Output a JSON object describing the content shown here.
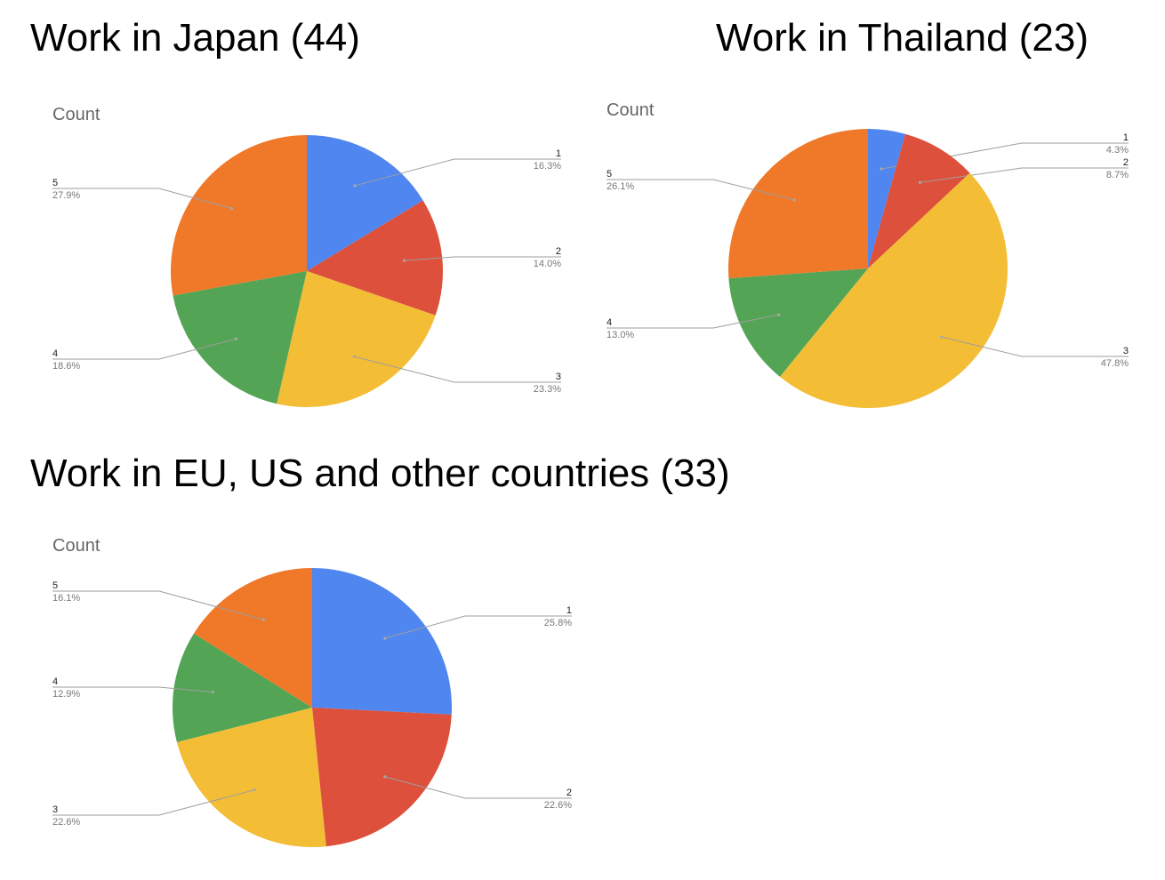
{
  "chart_data": [
    {
      "type": "pie",
      "section_title": "Work in Japan (44)",
      "title": "Count",
      "categories": [
        "1",
        "2",
        "3",
        "4",
        "5"
      ],
      "values": [
        16.3,
        14.0,
        23.3,
        18.6,
        27.9
      ],
      "value_labels": [
        "16.3%",
        "14.0%",
        "23.3%",
        "18.6%",
        "27.9%"
      ],
      "colors": [
        "#4f86ef",
        "#dd503c",
        "#f3bd36",
        "#53a555",
        "#ef7829"
      ]
    },
    {
      "type": "pie",
      "section_title": "Work in Thailand (23)",
      "title": "Count",
      "categories": [
        "1",
        "2",
        "3",
        "4",
        "5"
      ],
      "values": [
        4.3,
        8.7,
        47.8,
        13.0,
        26.1
      ],
      "value_labels": [
        "4.3%",
        "8.7%",
        "47.8%",
        "13.0%",
        "26.1%"
      ],
      "colors": [
        "#4f86ef",
        "#dd503c",
        "#f3bd36",
        "#53a555",
        "#ef7829"
      ]
    },
    {
      "type": "pie",
      "section_title": "Work in EU, US and other countries (33)",
      "title": "Count",
      "categories": [
        "1",
        "2",
        "3",
        "4",
        "5"
      ],
      "values": [
        25.8,
        22.6,
        22.6,
        12.9,
        16.1
      ],
      "value_labels": [
        "25.8%",
        "22.6%",
        "22.6%",
        "12.9%",
        "16.1%"
      ],
      "colors": [
        "#4f86ef",
        "#dd503c",
        "#f3bd36",
        "#53a555",
        "#ef7829"
      ]
    }
  ]
}
